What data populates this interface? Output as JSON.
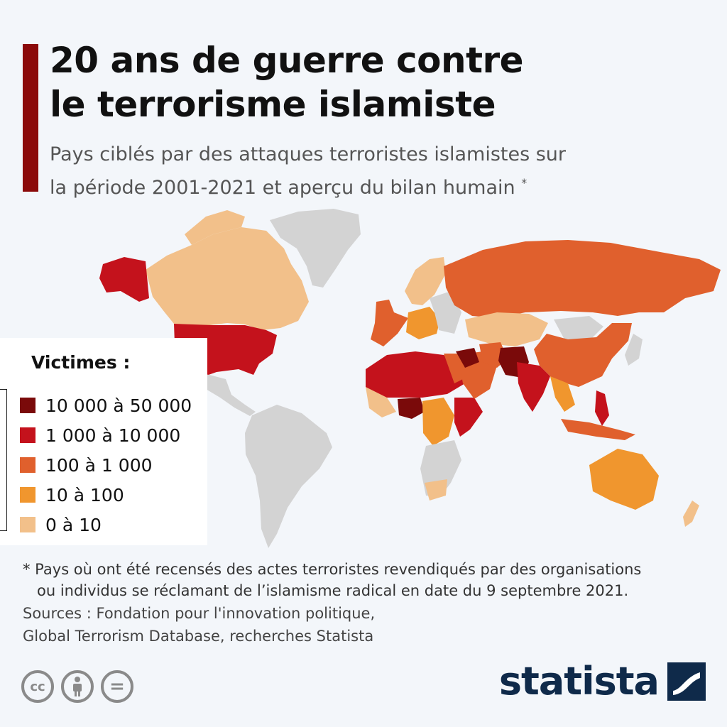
{
  "header": {
    "title_line1": "20 ans de guerre contre",
    "title_line2": "le terrorisme islamiste",
    "subtitle_line1": "Pays ciblés par des attaques terroristes islamistes sur",
    "subtitle_line2": "la période 2001-2021 et aperçu du bilan humain",
    "subtitle_mark": "*"
  },
  "colors": {
    "accent": "#8b0a0a",
    "no_data": "#d3d3d3",
    "10000_50000": "#7a0a0a",
    "1000_10000": "#c4121c",
    "100_1000": "#e0602d",
    "10_100": "#f0962e",
    "0_10": "#f2c08a",
    "brand": "#0f2a4a"
  },
  "legend": {
    "title": "Victimes :",
    "items": [
      {
        "label": "10 000 à 50 000",
        "color": "#7a0a0a"
      },
      {
        "label": "1 000 à 10 000",
        "color": "#c4121c"
      },
      {
        "label": "100 à 1 000",
        "color": "#e0602d"
      },
      {
        "label": "10 à 100",
        "color": "#f0962e"
      },
      {
        "label": "0 à 10",
        "color": "#f2c08a"
      }
    ]
  },
  "footnote": {
    "line1": "* Pays où ont été recensés des actes terroristes revendiqués par des organisations",
    "line2": "ou individus se réclamant de l’islamisme radical en date du 9 septembre 2021."
  },
  "sources": {
    "line1": "Sources : Fondation pour l'innovation politique,",
    "line2": "Global Terrorism Database, recherches Statista"
  },
  "license_icons": [
    {
      "name": "cc-icon",
      "glyph": "cc"
    },
    {
      "name": "attribution-icon",
      "glyph": ""
    },
    {
      "name": "no-derivatives-icon",
      "glyph": "="
    }
  ],
  "brand": {
    "name": "statista"
  }
}
